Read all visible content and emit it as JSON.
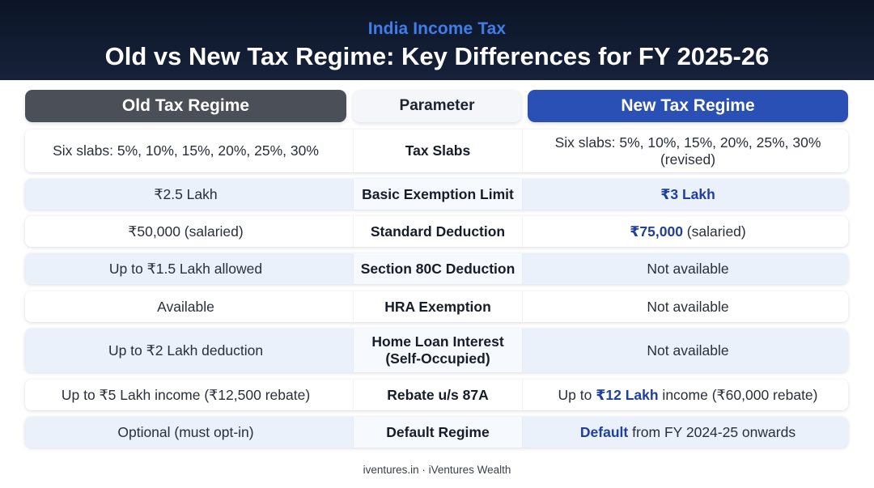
{
  "header": {
    "eyebrow": "India Income Tax",
    "title": "Old vs New Tax Regime: Key Differences for FY 2025-26"
  },
  "columns": {
    "old": "Old Tax Regime",
    "parameter": "Parameter",
    "new": "New Tax Regime"
  },
  "rows": [
    {
      "parameter": "Tax Slabs",
      "old": "Six slabs: 5%, 10%, 15%, 20%, 25%, 30%",
      "new_pre": "Six slabs: 5%, 10%, 15%, 20%, 25%, 30% (revised)",
      "new_bold": "",
      "new_post": ""
    },
    {
      "parameter": "Basic Exemption Limit",
      "old": "₹2.5 Lakh",
      "new_pre": "",
      "new_bold": "₹3 Lakh",
      "new_post": ""
    },
    {
      "parameter": "Standard Deduction",
      "old": "₹50,000 (salaried)",
      "new_pre": "",
      "new_bold": "₹75,000",
      "new_post": " (salaried)"
    },
    {
      "parameter": "Section 80C Deduction",
      "old": "Up to ₹1.5 Lakh allowed",
      "new_pre": "Not available",
      "new_bold": "",
      "new_post": ""
    },
    {
      "parameter": "HRA Exemption",
      "old": "Available",
      "new_pre": "Not available",
      "new_bold": "",
      "new_post": ""
    },
    {
      "parameter": "Home Loan Interest (Self-Occupied)",
      "old": "Up to ₹2 Lakh deduction",
      "new_pre": "Not available",
      "new_bold": "",
      "new_post": ""
    },
    {
      "parameter": "Rebate u/s 87A",
      "old": "Up to ₹5 Lakh income (₹12,500 rebate)",
      "new_pre": "Up to ",
      "new_bold": "₹12 Lakh",
      "new_post": " income (₹60,000 rebate)"
    },
    {
      "parameter": "Default Regime",
      "old": "Optional (must opt-in)",
      "new_pre": "",
      "new_bold": "Default",
      "new_post": " from FY 2024-25 onwards"
    }
  ],
  "footer": "iventures.in · iVentures Wealth"
}
